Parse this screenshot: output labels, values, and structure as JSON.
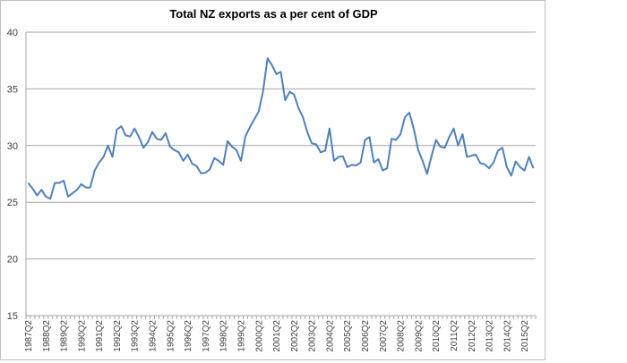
{
  "chart_data": {
    "type": "line",
    "title": "Total NZ exports as a per cent of GDP",
    "xlabel": "",
    "ylabel": "",
    "ylim": [
      15,
      40
    ],
    "yticks": [
      15,
      20,
      25,
      30,
      35,
      40
    ],
    "grid": true,
    "legend": "none",
    "line_color": "#4f81bd",
    "x": [
      "1987Q2",
      "1987Q3",
      "1987Q4",
      "1988Q1",
      "1988Q2",
      "1988Q3",
      "1988Q4",
      "1989Q1",
      "1989Q2",
      "1989Q3",
      "1989Q4",
      "1990Q1",
      "1990Q2",
      "1990Q3",
      "1990Q4",
      "1991Q1",
      "1991Q2",
      "1991Q3",
      "1991Q4",
      "1992Q1",
      "1992Q2",
      "1992Q3",
      "1992Q4",
      "1993Q1",
      "1993Q2",
      "1993Q3",
      "1993Q4",
      "1994Q1",
      "1994Q2",
      "1994Q3",
      "1994Q4",
      "1995Q1",
      "1995Q2",
      "1995Q3",
      "1995Q4",
      "1996Q1",
      "1996Q2",
      "1996Q3",
      "1996Q4",
      "1997Q1",
      "1997Q2",
      "1997Q3",
      "1997Q4",
      "1998Q1",
      "1998Q2",
      "1998Q3",
      "1998Q4",
      "1999Q1",
      "1999Q2",
      "1999Q3",
      "1999Q4",
      "2000Q1",
      "2000Q2",
      "2000Q3",
      "2000Q4",
      "2001Q1",
      "2001Q2",
      "2001Q3",
      "2001Q4",
      "2002Q1",
      "2002Q2",
      "2002Q3",
      "2002Q4",
      "2003Q1",
      "2003Q2",
      "2003Q3",
      "2003Q4",
      "2004Q1",
      "2004Q2",
      "2004Q3",
      "2004Q4",
      "2005Q1",
      "2005Q2",
      "2005Q3",
      "2005Q4",
      "2006Q1",
      "2006Q2",
      "2006Q3",
      "2006Q4",
      "2007Q1",
      "2007Q2",
      "2007Q3",
      "2007Q4",
      "2008Q1",
      "2008Q2",
      "2008Q3",
      "2008Q4",
      "2009Q1",
      "2009Q2",
      "2009Q3",
      "2009Q4",
      "2010Q1",
      "2010Q2",
      "2010Q3",
      "2010Q4",
      "2011Q1",
      "2011Q2",
      "2011Q3",
      "2011Q4",
      "2012Q1",
      "2012Q2",
      "2012Q3",
      "2012Q4",
      "2013Q1",
      "2013Q2",
      "2013Q3",
      "2013Q4",
      "2014Q1",
      "2014Q2",
      "2014Q3",
      "2014Q4",
      "2015Q1",
      "2015Q2",
      "2015Q3",
      "2015Q4"
    ],
    "xtick_labels": [
      "1987Q2",
      "1988Q2",
      "1989Q2",
      "1990Q2",
      "1991Q2",
      "1992Q2",
      "1993Q2",
      "1994Q2",
      "1995Q2",
      "1996Q2",
      "1997Q2",
      "1998Q2",
      "1999Q2",
      "2000Q2",
      "2001Q2",
      "2002Q2",
      "2003Q2",
      "2004Q2",
      "2005Q2",
      "2006Q2",
      "2007Q2",
      "2008Q2",
      "2009Q2",
      "2010Q2",
      "2011Q2",
      "2012Q2",
      "2013Q2",
      "2014Q2",
      "2015Q2"
    ],
    "values": [
      26.7,
      26.2,
      25.6,
      26.1,
      25.5,
      25.3,
      26.7,
      26.7,
      26.9,
      25.5,
      25.8,
      26.1,
      26.6,
      26.3,
      26.3,
      27.8,
      28.5,
      29.0,
      30.0,
      29.0,
      31.4,
      31.7,
      30.9,
      30.8,
      31.5,
      30.75,
      29.8,
      30.3,
      31.2,
      30.6,
      30.5,
      31.1,
      29.9,
      29.6,
      29.4,
      28.65,
      29.2,
      28.4,
      28.2,
      27.55,
      27.6,
      27.9,
      28.9,
      28.65,
      28.3,
      30.4,
      29.9,
      29.6,
      28.65,
      30.8,
      31.6,
      32.3,
      33.0,
      34.8,
      37.7,
      37.1,
      36.3,
      36.5,
      34.0,
      34.75,
      34.5,
      33.3,
      32.5,
      31.15,
      30.2,
      30.1,
      29.4,
      29.55,
      31.5,
      28.65,
      29.0,
      29.05,
      28.1,
      28.3,
      28.25,
      28.5,
      30.5,
      30.75,
      28.5,
      28.8,
      27.8,
      28.0,
      30.6,
      30.5,
      31.0,
      32.5,
      32.9,
      31.5,
      29.6,
      28.65,
      27.5,
      29.05,
      30.5,
      29.9,
      29.8,
      30.75,
      31.5,
      30.0,
      31.0,
      29.0,
      29.1,
      29.2,
      28.45,
      28.35,
      28.0,
      28.5,
      29.55,
      29.8,
      28.1,
      27.35,
      28.6,
      28.1,
      27.8,
      29.0,
      28.0
    ]
  }
}
